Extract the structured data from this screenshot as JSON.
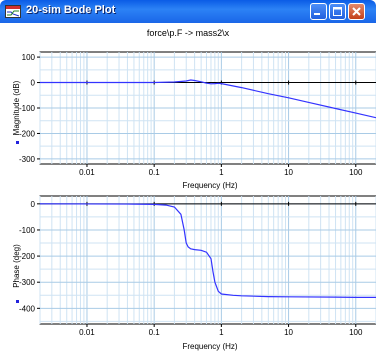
{
  "window": {
    "title": "20-sim Bode Plot",
    "plot_title": "force\\p.F -> mass2\\x"
  },
  "colors": {
    "titlebar": "#1a66e8",
    "curve": "#3333ff",
    "grid": "#a9cbe6",
    "close_button": "#c3401a"
  },
  "icons": {
    "app": "bode-plot-app-icon",
    "minimize": "minimize-icon",
    "maximize": "maximize-icon",
    "close": "close-icon"
  },
  "chart_data": [
    {
      "type": "line",
      "xscale": "log",
      "xlim": [
        0.002,
        200
      ],
      "ylim": [
        -320,
        120
      ],
      "grid": true,
      "xlabel": "Frequency (Hz)",
      "ylabel": "Magnitude (dB)",
      "x_ticks": [
        0.01,
        0.1,
        1,
        10,
        100
      ],
      "x_tick_labels": [
        "0.01",
        "0.1",
        "1",
        "10",
        "100"
      ],
      "y_ticks": [
        100,
        0,
        -100,
        -200,
        -300
      ],
      "y_tick_labels": [
        "100",
        "0",
        "-100",
        "-200",
        "-300"
      ],
      "series": [
        {
          "x": [
            0.002,
            0.01,
            0.1,
            0.2,
            0.3,
            0.35,
            0.4,
            0.5,
            0.6,
            0.7,
            0.8,
            0.9,
            1,
            2,
            5,
            10,
            20,
            50,
            100,
            200
          ],
          "values": [
            0,
            0,
            0,
            2,
            6,
            10,
            8,
            3,
            -2,
            -5,
            -4,
            -3,
            -4,
            -20,
            -44,
            -60,
            -78,
            -102,
            -120,
            -138
          ]
        }
      ]
    },
    {
      "type": "line",
      "xscale": "log",
      "xlim": [
        0.002,
        200
      ],
      "ylim": [
        -460,
        30
      ],
      "grid": true,
      "xlabel": "Frequency (Hz)",
      "ylabel": "Phase (deg)",
      "x_ticks": [
        0.01,
        0.1,
        1,
        10,
        100
      ],
      "x_tick_labels": [
        "0.01",
        "0.1",
        "1",
        "10",
        "100"
      ],
      "y_ticks": [
        0,
        -100,
        -200,
        -300,
        -400
      ],
      "y_tick_labels": [
        "0",
        "-100",
        "-200",
        "-300",
        "-400"
      ],
      "series": [
        {
          "x": [
            0.002,
            0.05,
            0.1,
            0.15,
            0.2,
            0.25,
            0.28,
            0.3,
            0.32,
            0.35,
            0.4,
            0.5,
            0.6,
            0.7,
            0.75,
            0.8,
            0.9,
            1,
            1.5,
            2,
            5,
            10,
            50,
            100,
            200
          ],
          "values": [
            0,
            -1,
            -2,
            -5,
            -12,
            -40,
            -100,
            -150,
            -165,
            -172,
            -175,
            -178,
            -185,
            -210,
            -260,
            -300,
            -335,
            -345,
            -350,
            -352,
            -355,
            -356,
            -357,
            -358,
            -358
          ]
        }
      ]
    }
  ]
}
